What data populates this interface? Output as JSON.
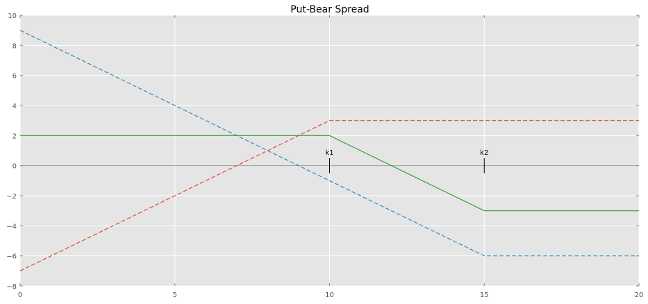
{
  "chart_data": {
    "type": "line",
    "title": "Put-Bear Spread",
    "xlabel": "",
    "ylabel": "",
    "xlim": [
      0,
      20
    ],
    "ylim": [
      -8,
      10
    ],
    "xticks": [
      0,
      5,
      10,
      15,
      20
    ],
    "yticks": [
      -8,
      -6,
      -4,
      -2,
      0,
      2,
      4,
      6,
      8,
      10
    ],
    "grid": true,
    "style": "ggplot",
    "zero_line": true,
    "series": [
      {
        "color": "#348ABD",
        "linestyle": "dashed",
        "x": [
          0,
          15,
          20
        ],
        "y": [
          9,
          -6,
          -6
        ]
      },
      {
        "color": "#E24A33",
        "linestyle": "dashed",
        "x": [
          0,
          10,
          20
        ],
        "y": [
          -7,
          3,
          3
        ]
      },
      {
        "color": "#2CA02C",
        "linestyle": "solid",
        "x": [
          0,
          10,
          15,
          20
        ],
        "y": [
          2,
          2,
          -3,
          -3
        ]
      }
    ],
    "annotations": [
      {
        "text": "k1",
        "x": 10,
        "y_low": -0.5,
        "y_high": 0.5
      },
      {
        "text": "k2",
        "x": 15,
        "y_low": -0.5,
        "y_high": 0.5
      }
    ]
  }
}
